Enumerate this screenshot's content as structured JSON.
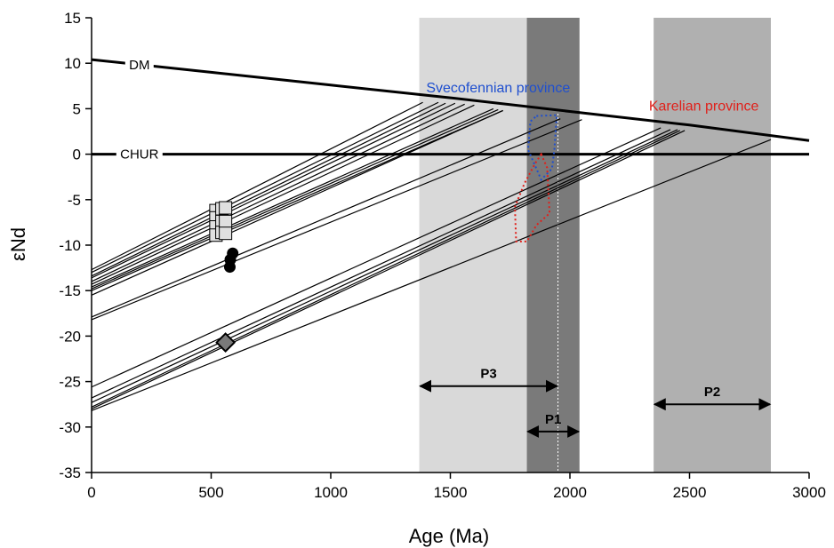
{
  "chart_data": {
    "type": "line",
    "xlabel": "Age (Ma)",
    "ylabel": "εNd",
    "xlim": [
      0,
      3000
    ],
    "ylim": [
      -35,
      15
    ],
    "xticks": [
      0,
      500,
      1000,
      1500,
      2000,
      2500,
      3000
    ],
    "yticks": [
      15,
      10,
      5,
      0,
      -5,
      -10,
      -15,
      -20,
      -25,
      -30,
      -35
    ],
    "grid": false,
    "reference_curves": [
      {
        "name": "DM",
        "x": [
          0,
          500,
          1000,
          1500,
          2000,
          2500,
          3000
        ],
        "y": [
          10.4,
          9.0,
          7.6,
          6.2,
          4.7,
          3.2,
          1.5
        ]
      },
      {
        "name": "CHUR",
        "x": [
          0,
          3000
        ],
        "y": [
          0,
          0
        ]
      }
    ],
    "shaded_ranges": [
      {
        "x0": 1370,
        "x1": 1950,
        "color": "#d9d9d9"
      },
      {
        "x0": 1820,
        "x1": 2040,
        "color": "#7a7a7a"
      },
      {
        "x0": 2350,
        "x1": 2840,
        "color": "#b0b0b0"
      }
    ],
    "periods": [
      {
        "label": "P3",
        "x0": 1370,
        "x1": 1950,
        "y": -25.5
      },
      {
        "label": "P1",
        "x0": 1820,
        "x1": 2040,
        "y": -30.5
      },
      {
        "label": "P2",
        "x0": 2350,
        "x1": 2840,
        "y": -27.5
      }
    ],
    "provinces": [
      {
        "label": "Svecofennian province",
        "color": "#1f4fcf",
        "label_x": 1700,
        "label_y": 6.8,
        "outline": [
          [
            1860,
            4.2
          ],
          [
            1945,
            4.3
          ],
          [
            1935,
            0.5
          ],
          [
            1925,
            -1.6
          ],
          [
            1880,
            -2.8
          ],
          [
            1825,
            0.5
          ],
          [
            1835,
            3.6
          ]
        ]
      },
      {
        "label": "Karelian province",
        "color": "#e0201a",
        "label_x": 2560,
        "label_y": 4.8,
        "outline": [
          [
            1880,
            0
          ],
          [
            1905,
            -1.5
          ],
          [
            1915,
            -6.5
          ],
          [
            1860,
            -7.8
          ],
          [
            1820,
            -9.6
          ],
          [
            1775,
            -9.6
          ],
          [
            1770,
            -5.8
          ],
          [
            1810,
            -3.2
          ],
          [
            1855,
            -1.0
          ]
        ]
      }
    ],
    "model_lines": [
      {
        "x": [
          0,
          1385
        ],
        "y": [
          -12.7,
          5.7
        ]
      },
      {
        "x": [
          0,
          1450
        ],
        "y": [
          -13.0,
          5.7
        ]
      },
      {
        "x": [
          0,
          1480
        ],
        "y": [
          -13.4,
          5.6
        ]
      },
      {
        "x": [
          0,
          1520
        ],
        "y": [
          -13.6,
          5.6
        ]
      },
      {
        "x": [
          0,
          1560
        ],
        "y": [
          -14.0,
          5.5
        ]
      },
      {
        "x": [
          0,
          1600
        ],
        "y": [
          -14.3,
          5.4
        ]
      },
      {
        "x": [
          0,
          1680
        ],
        "y": [
          -14.6,
          5.0
        ]
      },
      {
        "x": [
          0,
          1700
        ],
        "y": [
          -14.8,
          4.9
        ]
      },
      {
        "x": [
          0,
          1720
        ],
        "y": [
          -15.0,
          4.8
        ]
      },
      {
        "x": [
          0,
          1720
        ],
        "y": [
          -15.5,
          4.8
        ]
      },
      {
        "x": [
          0,
          1960
        ],
        "y": [
          -17.9,
          3.9
        ]
      },
      {
        "x": [
          0,
          2050
        ],
        "y": [
          -18.2,
          3.8
        ]
      },
      {
        "x": [
          0,
          2380
        ],
        "y": [
          -25.6,
          2.9
        ]
      },
      {
        "x": [
          0,
          2420
        ],
        "y": [
          -26.8,
          2.7
        ]
      },
      {
        "x": [
          0,
          2450
        ],
        "y": [
          -27.3,
          2.7
        ]
      },
      {
        "x": [
          0,
          2460
        ],
        "y": [
          -27.8,
          2.6
        ]
      },
      {
        "x": [
          0,
          2480
        ],
        "y": [
          -28.0,
          2.6
        ]
      },
      {
        "x": [
          0,
          2840
        ],
        "y": [
          -28.2,
          1.6
        ]
      }
    ],
    "sample_points": [
      {
        "marker": "square",
        "x": 520,
        "y": -6.2
      },
      {
        "marker": "square",
        "x": 520,
        "y": -7.0
      },
      {
        "marker": "square",
        "x": 520,
        "y": -8.0
      },
      {
        "marker": "square",
        "x": 520,
        "y": -8.9
      },
      {
        "marker": "square",
        "x": 545,
        "y": -6.0
      },
      {
        "marker": "square",
        "x": 545,
        "y": -7.4
      },
      {
        "marker": "square",
        "x": 545,
        "y": -8.6
      },
      {
        "marker": "square",
        "x": 560,
        "y": -5.9
      },
      {
        "marker": "square",
        "x": 560,
        "y": -7.4
      },
      {
        "marker": "square",
        "x": 560,
        "y": -8.7
      },
      {
        "marker": "circle",
        "x": 590,
        "y": -10.9
      },
      {
        "marker": "circle",
        "x": 580,
        "y": -11.6
      },
      {
        "marker": "circle",
        "x": 578,
        "y": -12.4
      },
      {
        "marker": "diamond",
        "x": 560,
        "y": -20.7
      }
    ]
  }
}
